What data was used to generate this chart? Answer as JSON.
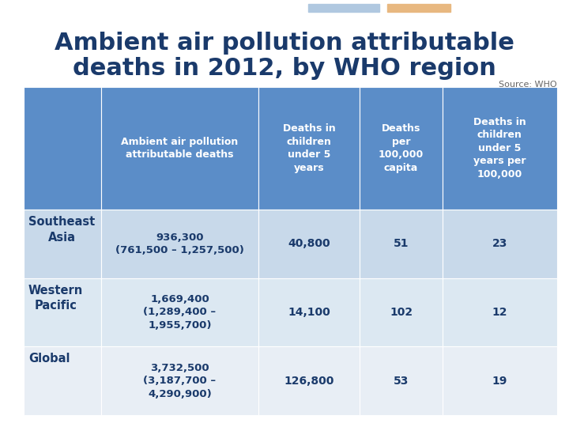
{
  "title_line1": "Ambient air pollution attributable",
  "title_line2": "deaths in 2012, by WHO region",
  "source": "Source: WHO",
  "header_bg": "#5b8dc8",
  "row_bg_0": "#c8d9ea",
  "row_bg_1": "#dce8f2",
  "row_bg_2": "#e8eef5",
  "text_color_header": "#ffffff",
  "text_color_row": "#1a3a6b",
  "title_color": "#1a3a6b",
  "col_headers": [
    "Ambient air pollution\nattributable deaths",
    "Deaths in\nchildren\nunder 5\nyears",
    "Deaths\nper\n100,000\ncapita",
    "Deaths in\nchildren\nunder 5\nyears per\n100,000"
  ],
  "row_labels": [
    "Southeast\nAsia",
    "Western\nPacific",
    "Global"
  ],
  "col1_values": [
    "936,300\n(761,500 – 1,257,500)",
    "1,669,400\n(1,289,400 –\n1,955,700)",
    "3,732,500\n(3,187,700 –\n4,290,900)"
  ],
  "col2_values": [
    "40,800",
    "14,100",
    "126,800"
  ],
  "col3_values": [
    "51",
    "102",
    "53"
  ],
  "col4_values": [
    "23",
    "12",
    "19"
  ],
  "background_color": "#ffffff",
  "accent_blue": "#b0c8e0",
  "accent_orange": "#e8b880",
  "source_color": "#666666"
}
